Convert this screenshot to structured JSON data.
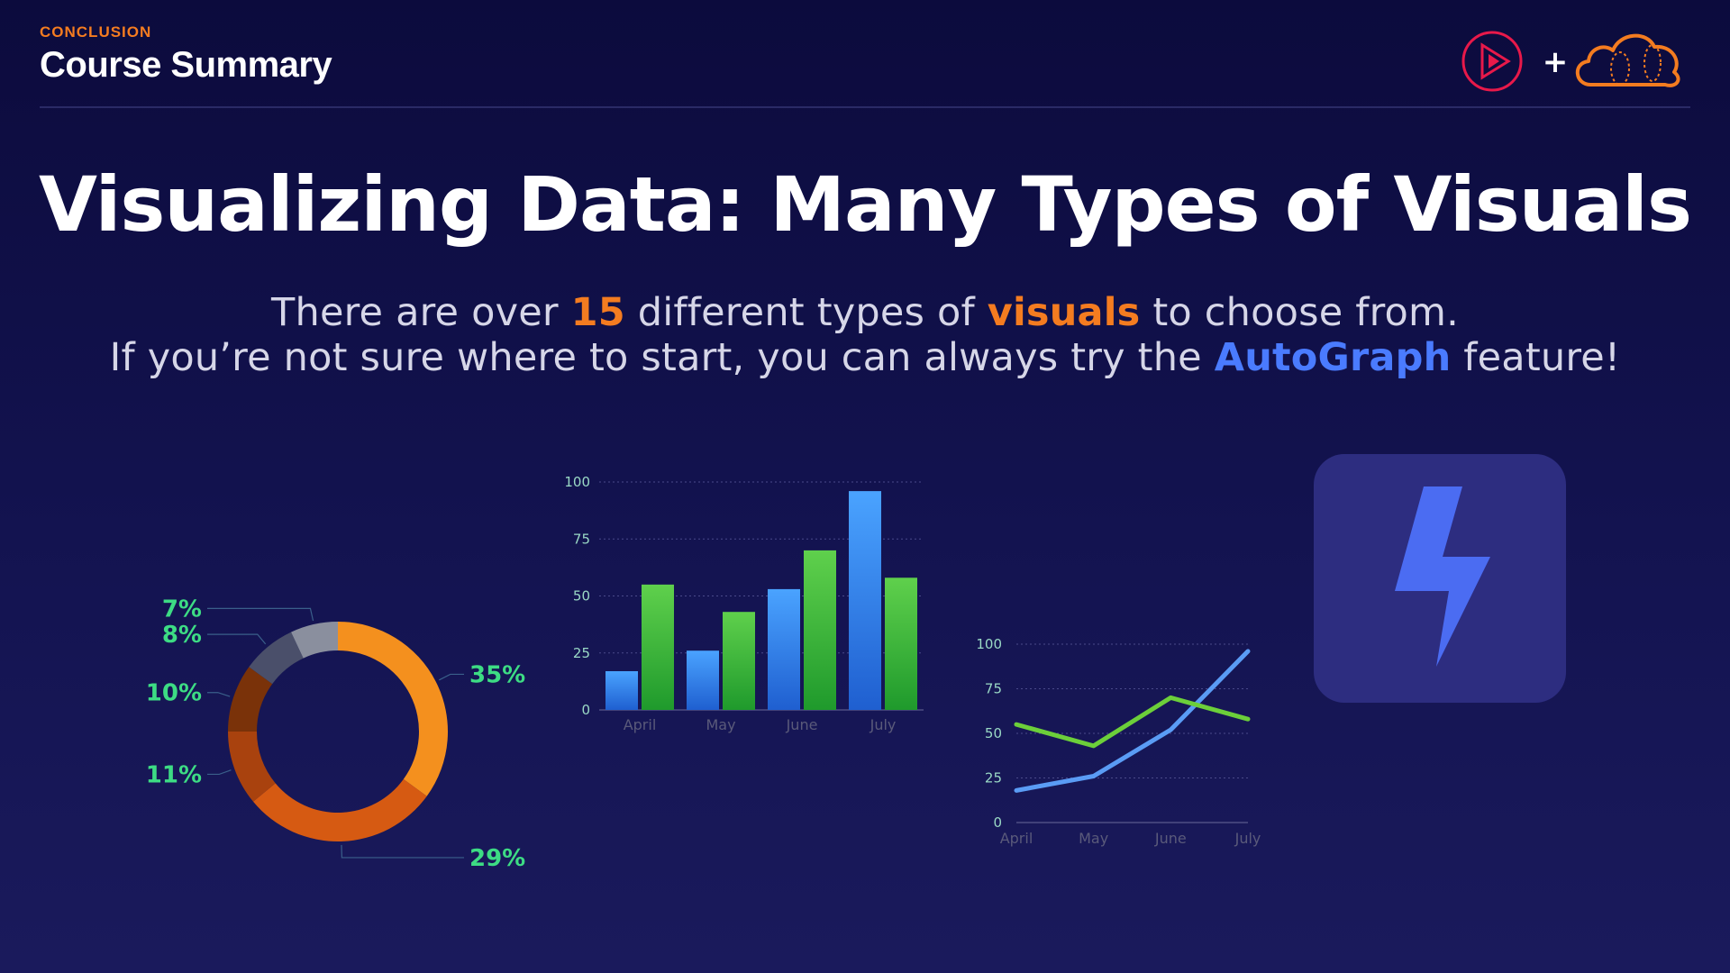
{
  "header": {
    "eyebrow": "CONCLUSION",
    "title": "Course Summary",
    "plus": "+"
  },
  "main_title": "Visualizing Data: Many Types of Visuals",
  "subtitle": {
    "line1": {
      "a": "There are over ",
      "b": "15",
      "c": " different types of ",
      "d": "visuals",
      "e": " to choose from."
    },
    "line2": {
      "a": "If you’re not sure where to start, you can always try the ",
      "b": "AutoGraph",
      "c": " feature!"
    }
  },
  "colors": {
    "accent_orange": "#f47c20",
    "accent_blue": "#4a7bff",
    "label_green": "#3ddc84",
    "bar_blue": "#3e8ef0",
    "bar_green": "#3fb83a"
  },
  "icons": {
    "pluralsight_logo": "play-circle-icon",
    "cloud_logo": "cloud-icon",
    "autograph": "lightning-bolt-icon"
  },
  "chart_data": [
    {
      "type": "pie",
      "labels": [
        "35%",
        "29%",
        "11%",
        "10%",
        "8%",
        "7%"
      ],
      "values": [
        35,
        29,
        11,
        10,
        8,
        7
      ],
      "colors": [
        "#f4901e",
        "#d65a12",
        "#a9420e",
        "#7a3209",
        "#4a4f6a",
        "#8a8f9e"
      ]
    },
    {
      "type": "bar",
      "categories": [
        "April",
        "May",
        "June",
        "July"
      ],
      "series": [
        {
          "values": [
            17,
            26,
            53,
            96
          ]
        },
        {
          "values": [
            55,
            43,
            70,
            58
          ]
        }
      ],
      "yticks": [
        "0",
        "25",
        "50",
        "75",
        "100"
      ],
      "ylim": [
        0,
        100
      ]
    },
    {
      "type": "line",
      "categories": [
        "April",
        "May",
        "June",
        "July"
      ],
      "series": [
        {
          "values": [
            18,
            26,
            52,
            96
          ]
        },
        {
          "values": [
            55,
            43,
            70,
            58
          ]
        }
      ],
      "yticks": [
        "0",
        "25",
        "50",
        "75",
        "100"
      ],
      "ylim": [
        0,
        100
      ]
    }
  ]
}
